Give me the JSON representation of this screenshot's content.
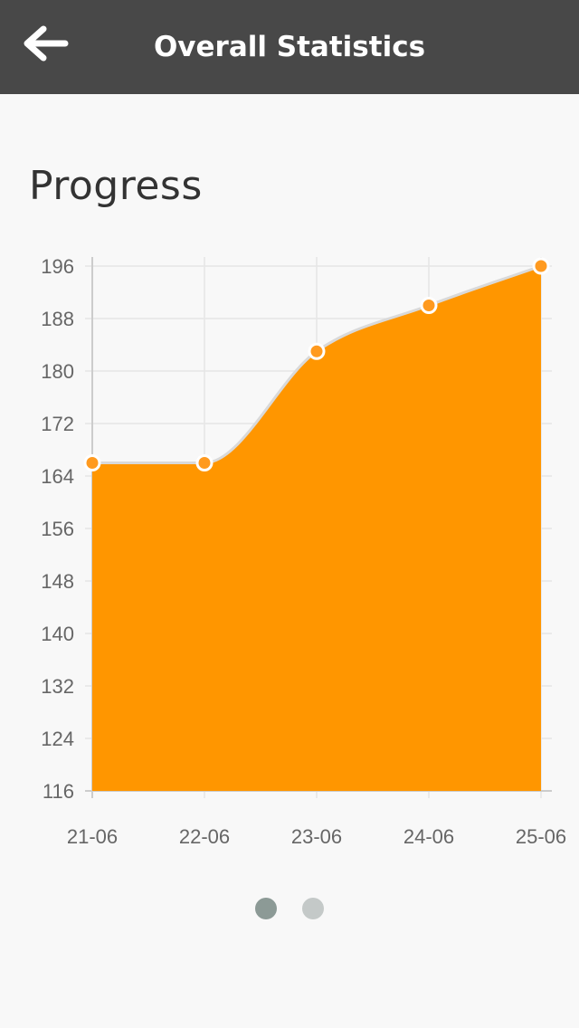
{
  "header": {
    "title": "Overall Statistics",
    "back_icon": "arrow-left-icon",
    "background_color": "#484848"
  },
  "section": {
    "title": "Progress"
  },
  "chart_data": {
    "type": "area",
    "title": "",
    "xlabel": "",
    "ylabel": "",
    "categories": [
      "21-06",
      "22-06",
      "23-06",
      "24-06",
      "25-06"
    ],
    "values": [
      166,
      166,
      183,
      190,
      196
    ],
    "ylim": [
      116,
      196
    ],
    "yticks": [
      116,
      124,
      132,
      140,
      148,
      156,
      164,
      172,
      180,
      188,
      196
    ],
    "grid": true,
    "legend": false,
    "fill_color": "#ff9600",
    "point_color": "#ff9a1f",
    "smooth": true
  },
  "pager": {
    "count": 2,
    "active_index": 0,
    "active_color": "#8c9a96",
    "inactive_color": "#c4c9c8"
  }
}
